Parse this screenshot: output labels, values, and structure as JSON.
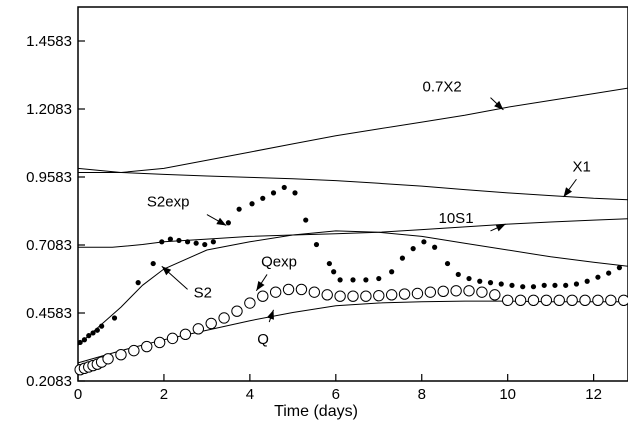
{
  "chart_data": {
    "type": "line",
    "title": "",
    "xlabel": "Time (days)",
    "ylabel": "",
    "xlim": [
      0,
      12.8
    ],
    "ylim": [
      0.2083,
      1.5833
    ],
    "grid": false,
    "legend": "none",
    "x_ticks": [
      0,
      2,
      4,
      6,
      8,
      10,
      12
    ],
    "x_tick_labels": [
      "0",
      "2",
      "4",
      "6",
      "8",
      "10",
      "12"
    ],
    "y_ticks": [
      0.2083,
      0.4583,
      0.7083,
      0.9583,
      1.2083,
      1.4583
    ],
    "y_tick_labels": [
      "0.2083",
      "0.4583",
      "0.7083",
      "0.9583",
      "1.2083",
      "1.4583"
    ],
    "series": [
      {
        "name": "0.7X2",
        "style": "line",
        "x": [
          0,
          1,
          2,
          3,
          4,
          5,
          6,
          7,
          8,
          9,
          10,
          11,
          12,
          12.8
        ],
        "y": [
          0.975,
          0.975,
          0.99,
          1.02,
          1.05,
          1.08,
          1.11,
          1.135,
          1.16,
          1.185,
          1.215,
          1.24,
          1.265,
          1.285
        ]
      },
      {
        "name": "X1",
        "style": "line",
        "x": [
          0,
          1,
          2,
          3,
          4,
          5,
          6,
          7,
          8,
          9,
          10,
          11,
          12,
          12.8
        ],
        "y": [
          0.99,
          0.975,
          0.968,
          0.962,
          0.957,
          0.952,
          0.945,
          0.935,
          0.925,
          0.912,
          0.9,
          0.89,
          0.88,
          0.875
        ]
      },
      {
        "name": "10S1",
        "style": "line",
        "x": [
          0,
          0.8,
          1.5,
          2,
          3,
          4,
          5,
          6,
          7,
          8,
          9,
          10,
          11,
          12,
          12.8
        ],
        "y": [
          0.7,
          0.7,
          0.71,
          0.72,
          0.73,
          0.74,
          0.745,
          0.75,
          0.755,
          0.765,
          0.775,
          0.785,
          0.793,
          0.8,
          0.805
        ]
      },
      {
        "name": "S2",
        "style": "line",
        "x": [
          0,
          0.5,
          1,
          1.5,
          2,
          3,
          4,
          5,
          6,
          7,
          8,
          9,
          10,
          11,
          12,
          12.8
        ],
        "y": [
          0.34,
          0.41,
          0.48,
          0.56,
          0.62,
          0.69,
          0.72,
          0.745,
          0.76,
          0.755,
          0.74,
          0.715,
          0.69,
          0.665,
          0.645,
          0.63
        ]
      },
      {
        "name": "Q",
        "style": "line",
        "x": [
          0,
          1,
          2,
          3,
          4,
          5,
          6,
          7,
          8,
          9,
          10,
          11,
          12,
          12.8
        ],
        "y": [
          0.275,
          0.32,
          0.36,
          0.395,
          0.43,
          0.46,
          0.485,
          0.495,
          0.5,
          0.502,
          0.502,
          0.5,
          0.5,
          0.5
        ]
      },
      {
        "name": "S2exp",
        "style": "filled-dots",
        "x": [
          0.05,
          0.15,
          0.25,
          0.35,
          0.45,
          0.55,
          0.85,
          1.4,
          1.75,
          1.95,
          2.15,
          2.35,
          2.55,
          2.75,
          2.95,
          3.15,
          3.5,
          3.75,
          4.05,
          4.3,
          4.55,
          4.8,
          5.05,
          5.3,
          5.55,
          5.85,
          5.95,
          6.1,
          6.4,
          6.7,
          7.0,
          7.3,
          7.55,
          7.8,
          8.05,
          8.3,
          8.6,
          8.85,
          9.1,
          9.35,
          9.6,
          9.85,
          10.1,
          10.35,
          10.6,
          10.85,
          11.1,
          11.35,
          11.6,
          11.85,
          12.1,
          12.35,
          12.6
        ],
        "y": [
          0.35,
          0.36,
          0.375,
          0.385,
          0.395,
          0.41,
          0.44,
          0.57,
          0.64,
          0.72,
          0.73,
          0.725,
          0.72,
          0.715,
          0.71,
          0.72,
          0.79,
          0.84,
          0.86,
          0.88,
          0.9,
          0.92,
          0.9,
          0.8,
          0.71,
          0.64,
          0.61,
          0.58,
          0.58,
          0.58,
          0.585,
          0.61,
          0.66,
          0.695,
          0.72,
          0.7,
          0.64,
          0.6,
          0.585,
          0.575,
          0.57,
          0.565,
          0.56,
          0.555,
          0.555,
          0.56,
          0.56,
          0.56,
          0.565,
          0.575,
          0.59,
          0.605,
          0.625
        ]
      },
      {
        "name": "Qexp",
        "style": "open-circles",
        "x": [
          0.05,
          0.15,
          0.25,
          0.35,
          0.45,
          0.55,
          0.7,
          1.0,
          1.3,
          1.6,
          1.9,
          2.2,
          2.5,
          2.8,
          3.1,
          3.4,
          3.7,
          4.0,
          4.3,
          4.6,
          4.9,
          5.2,
          5.5,
          5.8,
          6.1,
          6.4,
          6.7,
          7.0,
          7.3,
          7.6,
          7.9,
          8.2,
          8.5,
          8.8,
          9.1,
          9.4,
          9.7,
          10.0,
          10.3,
          10.6,
          10.9,
          11.2,
          11.5,
          11.8,
          12.1,
          12.4,
          12.7
        ],
        "y": [
          0.25,
          0.255,
          0.26,
          0.265,
          0.27,
          0.278,
          0.29,
          0.305,
          0.32,
          0.335,
          0.35,
          0.365,
          0.38,
          0.4,
          0.42,
          0.44,
          0.465,
          0.495,
          0.52,
          0.535,
          0.545,
          0.545,
          0.535,
          0.525,
          0.52,
          0.52,
          0.52,
          0.522,
          0.525,
          0.528,
          0.53,
          0.535,
          0.538,
          0.54,
          0.54,
          0.535,
          0.525,
          0.505,
          0.505,
          0.505,
          0.505,
          0.505,
          0.505,
          0.505,
          0.505,
          0.505,
          0.505
        ]
      }
    ],
    "annotations": [
      {
        "text": "0.7X2",
        "x_from": 9.6,
        "y_from": 1.25,
        "x_to": 9.9,
        "y_to": 1.205
      },
      {
        "text": "X1",
        "x_from": 11.6,
        "y_from": 0.95,
        "x_to": 11.3,
        "y_to": 0.885
      },
      {
        "text": "10S1",
        "x_from": 9.6,
        "y_from": 0.76,
        "x_to": 9.95,
        "y_to": 0.785
      },
      {
        "text": "S2exp",
        "x_from": 3.0,
        "y_from": 0.82,
        "x_to": 3.45,
        "y_to": 0.78
      },
      {
        "text": "S2",
        "x_from": 2.55,
        "y_from": 0.545,
        "x_to": 1.95,
        "y_to": 0.63
      },
      {
        "text": "Qexp",
        "x_from": 4.4,
        "y_from": 0.6,
        "x_to": 4.15,
        "y_to": 0.54
      },
      {
        "text": "Q",
        "x_from": 4.45,
        "y_from": 0.425,
        "x_to": 4.55,
        "y_to": 0.47
      }
    ]
  }
}
